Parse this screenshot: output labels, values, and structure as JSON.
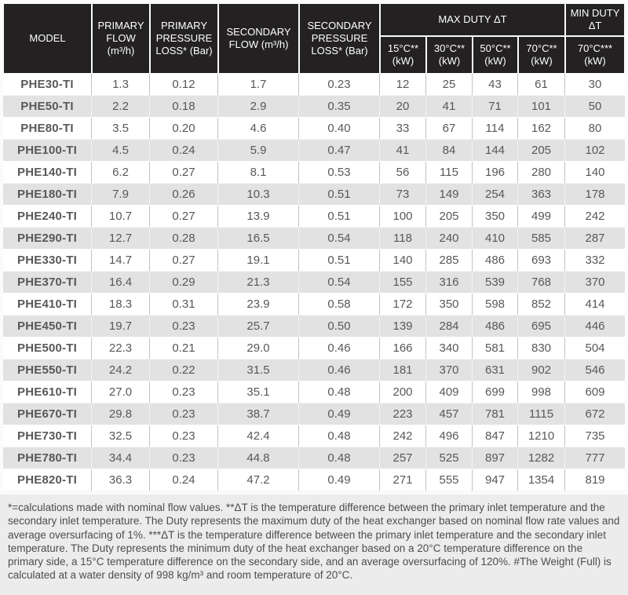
{
  "table": {
    "header": {
      "model": "MODEL",
      "primary_flow": "PRIMARY FLOW (m³/h)",
      "primary_pressure_loss": "PRIMARY PRESSURE LOSS* (Bar)",
      "secondary_flow": "SECONDARY FLOW (m³/h)",
      "secondary_pressure_loss": "SECONDARY PRESSURE LOSS* (Bar)",
      "max_duty_group": "MAX DUTY ΔT",
      "min_duty_group": "MIN DUTY ΔT",
      "sub_columns": [
        "15°C** (kW)",
        "30°C** (kW)",
        "50°C** (kW)",
        "70°C** (kW)",
        "70°C*** (kW)"
      ]
    },
    "rows": [
      {
        "model": "PHE30-TI",
        "values": [
          "1.3",
          "0.12",
          "1.7",
          "0.23",
          "12",
          "25",
          "43",
          "61",
          "30"
        ]
      },
      {
        "model": "PHE50-TI",
        "values": [
          "2.2",
          "0.18",
          "2.9",
          "0.35",
          "20",
          "41",
          "71",
          "101",
          "50"
        ]
      },
      {
        "model": "PHE80-TI",
        "values": [
          "3.5",
          "0.20",
          "4.6",
          "0.40",
          "33",
          "67",
          "114",
          "162",
          "80"
        ]
      },
      {
        "model": "PHE100-TI",
        "values": [
          "4.5",
          "0.24",
          "5.9",
          "0.47",
          "41",
          "84",
          "144",
          "205",
          "102"
        ]
      },
      {
        "model": "PHE140-TI",
        "values": [
          "6.2",
          "0.27",
          "8.1",
          "0.53",
          "56",
          "115",
          "196",
          "280",
          "140"
        ]
      },
      {
        "model": "PHE180-TI",
        "values": [
          "7.9",
          "0.26",
          "10.3",
          "0.51",
          "73",
          "149",
          "254",
          "363",
          "178"
        ]
      },
      {
        "model": "PHE240-TI",
        "values": [
          "10.7",
          "0.27",
          "13.9",
          "0.51",
          "100",
          "205",
          "350",
          "499",
          "242"
        ]
      },
      {
        "model": "PHE290-TI",
        "values": [
          "12.7",
          "0.28",
          "16.5",
          "0.54",
          "118",
          "240",
          "410",
          "585",
          "287"
        ]
      },
      {
        "model": "PHE330-TI",
        "values": [
          "14.7",
          "0.27",
          "19.1",
          "0.51",
          "140",
          "285",
          "486",
          "693",
          "332"
        ]
      },
      {
        "model": "PHE370-TI",
        "values": [
          "16.4",
          "0.29",
          "21.3",
          "0.54",
          "155",
          "316",
          "539",
          "768",
          "370"
        ]
      },
      {
        "model": "PHE410-TI",
        "values": [
          "18.3",
          "0.31",
          "23.9",
          "0.58",
          "172",
          "350",
          "598",
          "852",
          "414"
        ]
      },
      {
        "model": "PHE450-TI",
        "values": [
          "19.7",
          "0.23",
          "25.7",
          "0.50",
          "139",
          "284",
          "486",
          "695",
          "446"
        ]
      },
      {
        "model": "PHE500-TI",
        "values": [
          "22.3",
          "0.21",
          "29.0",
          "0.46",
          "166",
          "340",
          "581",
          "830",
          "504"
        ]
      },
      {
        "model": "PHE550-TI",
        "values": [
          "24.2",
          "0.22",
          "31.5",
          "0.46",
          "181",
          "370",
          "631",
          "902",
          "546"
        ]
      },
      {
        "model": "PHE610-TI",
        "values": [
          "27.0",
          "0.23",
          "35.1",
          "0.48",
          "200",
          "409",
          "699",
          "998",
          "609"
        ]
      },
      {
        "model": "PHE670-TI",
        "values": [
          "29.8",
          "0.23",
          "38.7",
          "0.49",
          "223",
          "457",
          "781",
          "1115",
          "672"
        ]
      },
      {
        "model": "PHE730-TI",
        "values": [
          "32.5",
          "0.23",
          "42.4",
          "0.48",
          "242",
          "496",
          "847",
          "1210",
          "735"
        ]
      },
      {
        "model": "PHE780-TI",
        "values": [
          "34.4",
          "0.23",
          "44.8",
          "0.48",
          "257",
          "525",
          "897",
          "1282",
          "777"
        ]
      },
      {
        "model": "PHE820-TI",
        "values": [
          "36.3",
          "0.24",
          "47.2",
          "0.49",
          "271",
          "555",
          "947",
          "1354",
          "819"
        ]
      }
    ],
    "colors": {
      "header_bg": "#242122",
      "stripe_bg": "#e2e2e3",
      "value_text": "#57585a",
      "model_text": "#232021"
    }
  },
  "footnote": "*=calculations made with nominal flow values. **ΔT is the temperature difference between the primary inlet temperature and the secondary inlet temperature. The Duty represents the maximum duty of the heat exchanger based on nominal flow rate values and average oversurfacing of 1%. ***ΔT is the temperature difference between the primary inlet temperature and the secondary inlet temperature. The Duty represents the minimum duty of the heat exchanger based on a 20°C temperature difference on the primary side, a 15°C temperature difference on the secondary side, and an average oversurfacing of 120%. #The Weight (Full) is calculated at a water density of 998 kg/m³ and room temperature of 20°C."
}
